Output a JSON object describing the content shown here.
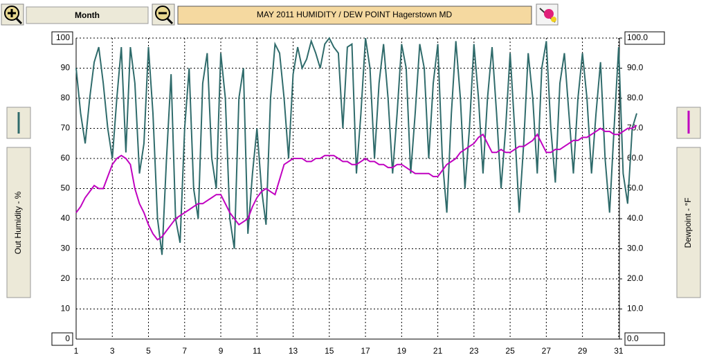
{
  "toolbar": {
    "period": "Month"
  },
  "chart_data": {
    "type": "line",
    "title": "MAY 2011  HUMIDITY / DEW POINT  Hagerstown MD",
    "y_label": "Out Humidity - %",
    "y2_label": "Dewpoint - °F",
    "xlim": [
      1,
      32
    ],
    "xticks": [
      1,
      3,
      5,
      7,
      9,
      11,
      13,
      15,
      17,
      19,
      21,
      23,
      25,
      27,
      29,
      31
    ],
    "ylim": [
      0,
      100
    ],
    "yticks": [
      0,
      10,
      20,
      30,
      40,
      50,
      60,
      70,
      80,
      90,
      100
    ],
    "y2lim": [
      0,
      100
    ],
    "y2ticks": [
      {
        "value": 0,
        "label": "0.0"
      },
      {
        "value": 10,
        "label": "10.0"
      },
      {
        "value": 20,
        "label": "20.0"
      },
      {
        "value": 30,
        "label": "30.0"
      },
      {
        "value": 40,
        "label": "40.0"
      },
      {
        "value": 50,
        "label": "50.0"
      },
      {
        "value": 60,
        "label": "60.0"
      },
      {
        "value": 70,
        "label": "70.0"
      },
      {
        "value": 80,
        "label": "80.0"
      },
      {
        "value": 90,
        "label": "90.0"
      },
      {
        "value": 100,
        "label": "100.0"
      }
    ],
    "grid": true,
    "x": [
      1,
      1.25,
      1.5,
      1.75,
      2,
      2.25,
      2.5,
      2.75,
      3,
      3.25,
      3.5,
      3.75,
      4,
      4.25,
      4.5,
      4.75,
      5,
      5.25,
      5.5,
      5.75,
      6,
      6.25,
      6.5,
      6.75,
      7,
      7.25,
      7.5,
      7.75,
      8,
      8.25,
      8.5,
      8.75,
      9,
      9.25,
      9.5,
      9.75,
      10,
      10.25,
      10.5,
      10.75,
      11,
      11.25,
      11.5,
      11.75,
      12,
      12.25,
      12.5,
      12.75,
      13,
      13.25,
      13.5,
      13.75,
      14,
      14.25,
      14.5,
      14.75,
      15,
      15.25,
      15.5,
      15.75,
      16,
      16.25,
      16.5,
      16.75,
      17,
      17.25,
      17.5,
      17.75,
      18,
      18.25,
      18.5,
      18.75,
      19,
      19.25,
      19.5,
      19.75,
      20,
      20.25,
      20.5,
      20.75,
      21,
      21.25,
      21.5,
      21.75,
      22,
      22.25,
      22.5,
      22.75,
      23,
      23.25,
      23.5,
      23.75,
      24,
      24.25,
      24.5,
      24.75,
      25,
      25.25,
      25.5,
      25.75,
      26,
      26.25,
      26.5,
      26.75,
      27,
      27.25,
      27.5,
      27.75,
      28,
      28.25,
      28.5,
      28.75,
      29,
      29.25,
      29.5,
      29.75,
      30,
      30.25,
      30.5,
      30.75,
      31,
      31.25,
      31.5,
      31.75,
      32
    ],
    "series": [
      {
        "name": "Out Humidity",
        "color": "#2f6b6b",
        "values": [
          90,
          75,
          65,
          80,
          92,
          97,
          85,
          70,
          60,
          80,
          97,
          62,
          97,
          85,
          55,
          65,
          97,
          75,
          40,
          28,
          60,
          88,
          40,
          32,
          70,
          90,
          50,
          40,
          85,
          95,
          60,
          50,
          95,
          80,
          40,
          30,
          80,
          90,
          35,
          55,
          70,
          50,
          38,
          80,
          98,
          95,
          80,
          60,
          88,
          97,
          90,
          93,
          99,
          95,
          90,
          98,
          100,
          97,
          95,
          70,
          97,
          98,
          55,
          75,
          100,
          90,
          60,
          85,
          98,
          80,
          55,
          75,
          98,
          90,
          55,
          75,
          98,
          90,
          60,
          85,
          98,
          60,
          42,
          75,
          99,
          80,
          50,
          70,
          98,
          80,
          55,
          80,
          97,
          75,
          50,
          70,
          95,
          70,
          42,
          65,
          95,
          80,
          55,
          90,
          99,
          70,
          52,
          85,
          95,
          75,
          55,
          80,
          95,
          80,
          55,
          75,
          92,
          60,
          42,
          70,
          97,
          55,
          45,
          70,
          75
        ]
      },
      {
        "name": "Dewpoint",
        "color": "#c000c0",
        "axis": "y2",
        "values": [
          42,
          44,
          47,
          49,
          51,
          50,
          50,
          54,
          58,
          60,
          61,
          60,
          58,
          50,
          45,
          42,
          38,
          35,
          33,
          34,
          36,
          38,
          40,
          41,
          42,
          43,
          44,
          45,
          45,
          46,
          47,
          48,
          48,
          45,
          42,
          40,
          38,
          39,
          40,
          44,
          47,
          49,
          50,
          49,
          48,
          53,
          58,
          59,
          60,
          60,
          60,
          59,
          59,
          60,
          60,
          61,
          61,
          61,
          60,
          59,
          59,
          58,
          58,
          59,
          60,
          59,
          59,
          58,
          58,
          57,
          57,
          58,
          58,
          57,
          56,
          55,
          55,
          55,
          55,
          54,
          54,
          56,
          58,
          59,
          60,
          62,
          63,
          64,
          65,
          67,
          68,
          65,
          62,
          62,
          63,
          62,
          62,
          63,
          64,
          64,
          65,
          66,
          68,
          65,
          62,
          62,
          63,
          63,
          64,
          65,
          66,
          66,
          67,
          67,
          68,
          69,
          70,
          69,
          69,
          68,
          68,
          69,
          70,
          70,
          71
        ]
      }
    ]
  }
}
